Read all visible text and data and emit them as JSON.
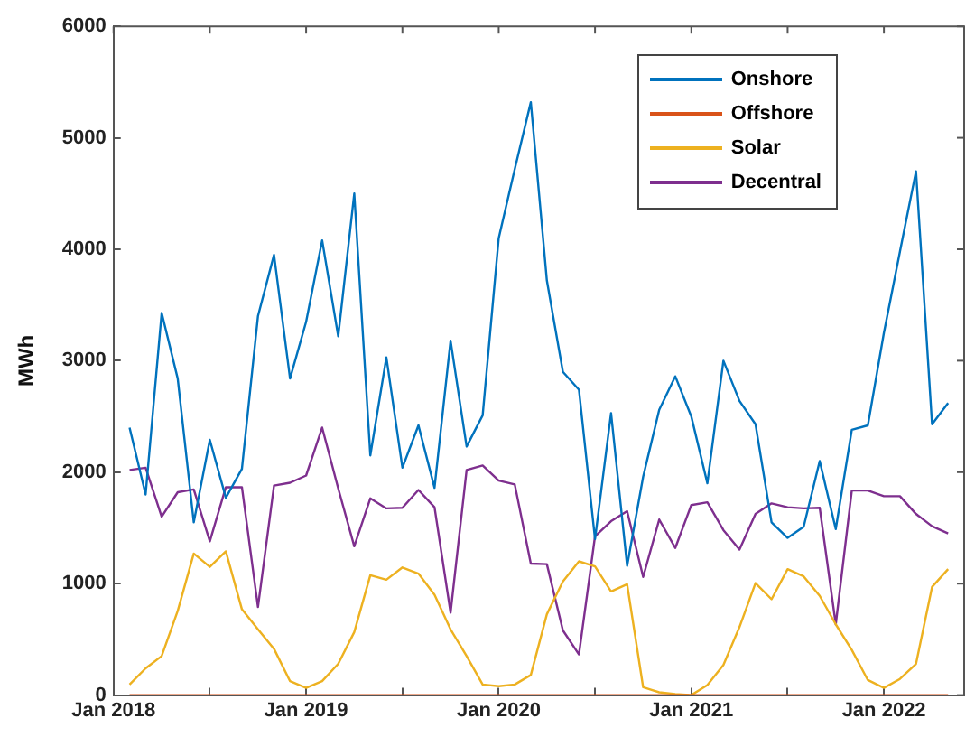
{
  "chart_data": {
    "type": "line",
    "ylabel": "MWh",
    "legend": "top right",
    "grid": false,
    "marker": "none",
    "line_style": "solid",
    "x": [
      "2018-02",
      "2018-03",
      "2018-04",
      "2018-05",
      "2018-06",
      "2018-07",
      "2018-08",
      "2018-09",
      "2018-10",
      "2018-11",
      "2018-12",
      "2019-01",
      "2019-02",
      "2019-03",
      "2019-04",
      "2019-05",
      "2019-06",
      "2019-07",
      "2019-08",
      "2019-09",
      "2019-10",
      "2019-11",
      "2019-12",
      "2020-01",
      "2020-02",
      "2020-03",
      "2020-04",
      "2020-05",
      "2020-06",
      "2020-07",
      "2020-08",
      "2020-09",
      "2020-10",
      "2020-11",
      "2020-12",
      "2021-01",
      "2021-02",
      "2021-03",
      "2021-04",
      "2021-05",
      "2021-06",
      "2021-07",
      "2021-08",
      "2021-09",
      "2021-10",
      "2021-11",
      "2021-12",
      "2022-01",
      "2022-02",
      "2022-03",
      "2022-04",
      "2022-05"
    ],
    "xlim": [
      "2018-01",
      "2022-06"
    ],
    "xticks": [
      {
        "value": "2018-01",
        "label": "Jan 2018"
      },
      {
        "value": "2018-07",
        "label": null
      },
      {
        "value": "2019-01",
        "label": "Jan 2019"
      },
      {
        "value": "2019-07",
        "label": null
      },
      {
        "value": "2020-01",
        "label": "Jan 2020"
      },
      {
        "value": "2020-07",
        "label": null
      },
      {
        "value": "2021-01",
        "label": "Jan 2021"
      },
      {
        "value": "2021-07",
        "label": null
      },
      {
        "value": "2022-01",
        "label": "Jan 2022"
      }
    ],
    "ylim": [
      0,
      6000
    ],
    "yticks": [
      0,
      1000,
      2000,
      3000,
      4000,
      5000,
      6000
    ],
    "series": [
      {
        "name": "Onshore",
        "color": "#0072bd",
        "values": [
          2400,
          1800,
          3430,
          2840,
          1550,
          2290,
          1770,
          2030,
          3400,
          3950,
          2840,
          3350,
          4080,
          3220,
          4500,
          2150,
          3030,
          2040,
          2420,
          1860,
          3180,
          2230,
          2510,
          4100,
          4720,
          5320,
          3720,
          2900,
          2740,
          1400,
          2530,
          1160,
          1960,
          2560,
          2860,
          2500,
          1900,
          3000,
          2640,
          2430,
          1550,
          1410,
          1510,
          2100,
          1490,
          2380,
          2420,
          3250,
          3980,
          4700,
          2430,
          2620
        ]
      },
      {
        "name": "Offshore",
        "color": "#d95319",
        "values": [
          0,
          0,
          0,
          0,
          0,
          0,
          0,
          0,
          0,
          0,
          0,
          0,
          0,
          0,
          0,
          0,
          0,
          0,
          0,
          0,
          0,
          0,
          0,
          0,
          0,
          0,
          0,
          0,
          0,
          0,
          0,
          0,
          0,
          0,
          0,
          0,
          0,
          0,
          0,
          0,
          0,
          0,
          0,
          0,
          0,
          0,
          0,
          0,
          0,
          0,
          0,
          0
        ]
      },
      {
        "name": "Solar",
        "color": "#edb120",
        "values": [
          95,
          240,
          350,
          755,
          1270,
          1150,
          1290,
          770,
          590,
          415,
          125,
          65,
          125,
          280,
          565,
          1075,
          1035,
          1145,
          1090,
          900,
          590,
          350,
          95,
          80,
          95,
          180,
          725,
          1020,
          1200,
          1155,
          930,
          995,
          70,
          25,
          10,
          0,
          90,
          270,
          610,
          1005,
          860,
          1130,
          1065,
          890,
          635,
          405,
          135,
          65,
          145,
          280,
          970,
          1130
        ]
      },
      {
        "name": "Decentral",
        "color": "#7e2f8e",
        "values": [
          2020,
          2040,
          1600,
          1820,
          1845,
          1380,
          1865,
          1865,
          790,
          1880,
          1905,
          1970,
          2400,
          1855,
          1335,
          1765,
          1675,
          1680,
          1840,
          1685,
          740,
          2020,
          2060,
          1925,
          1890,
          1180,
          1175,
          580,
          365,
          1425,
          1560,
          1650,
          1060,
          1575,
          1320,
          1705,
          1730,
          1480,
          1305,
          1625,
          1720,
          1685,
          1675,
          1680,
          635,
          1835,
          1835,
          1785,
          1785,
          1625,
          1515,
          1450
        ]
      }
    ]
  }
}
